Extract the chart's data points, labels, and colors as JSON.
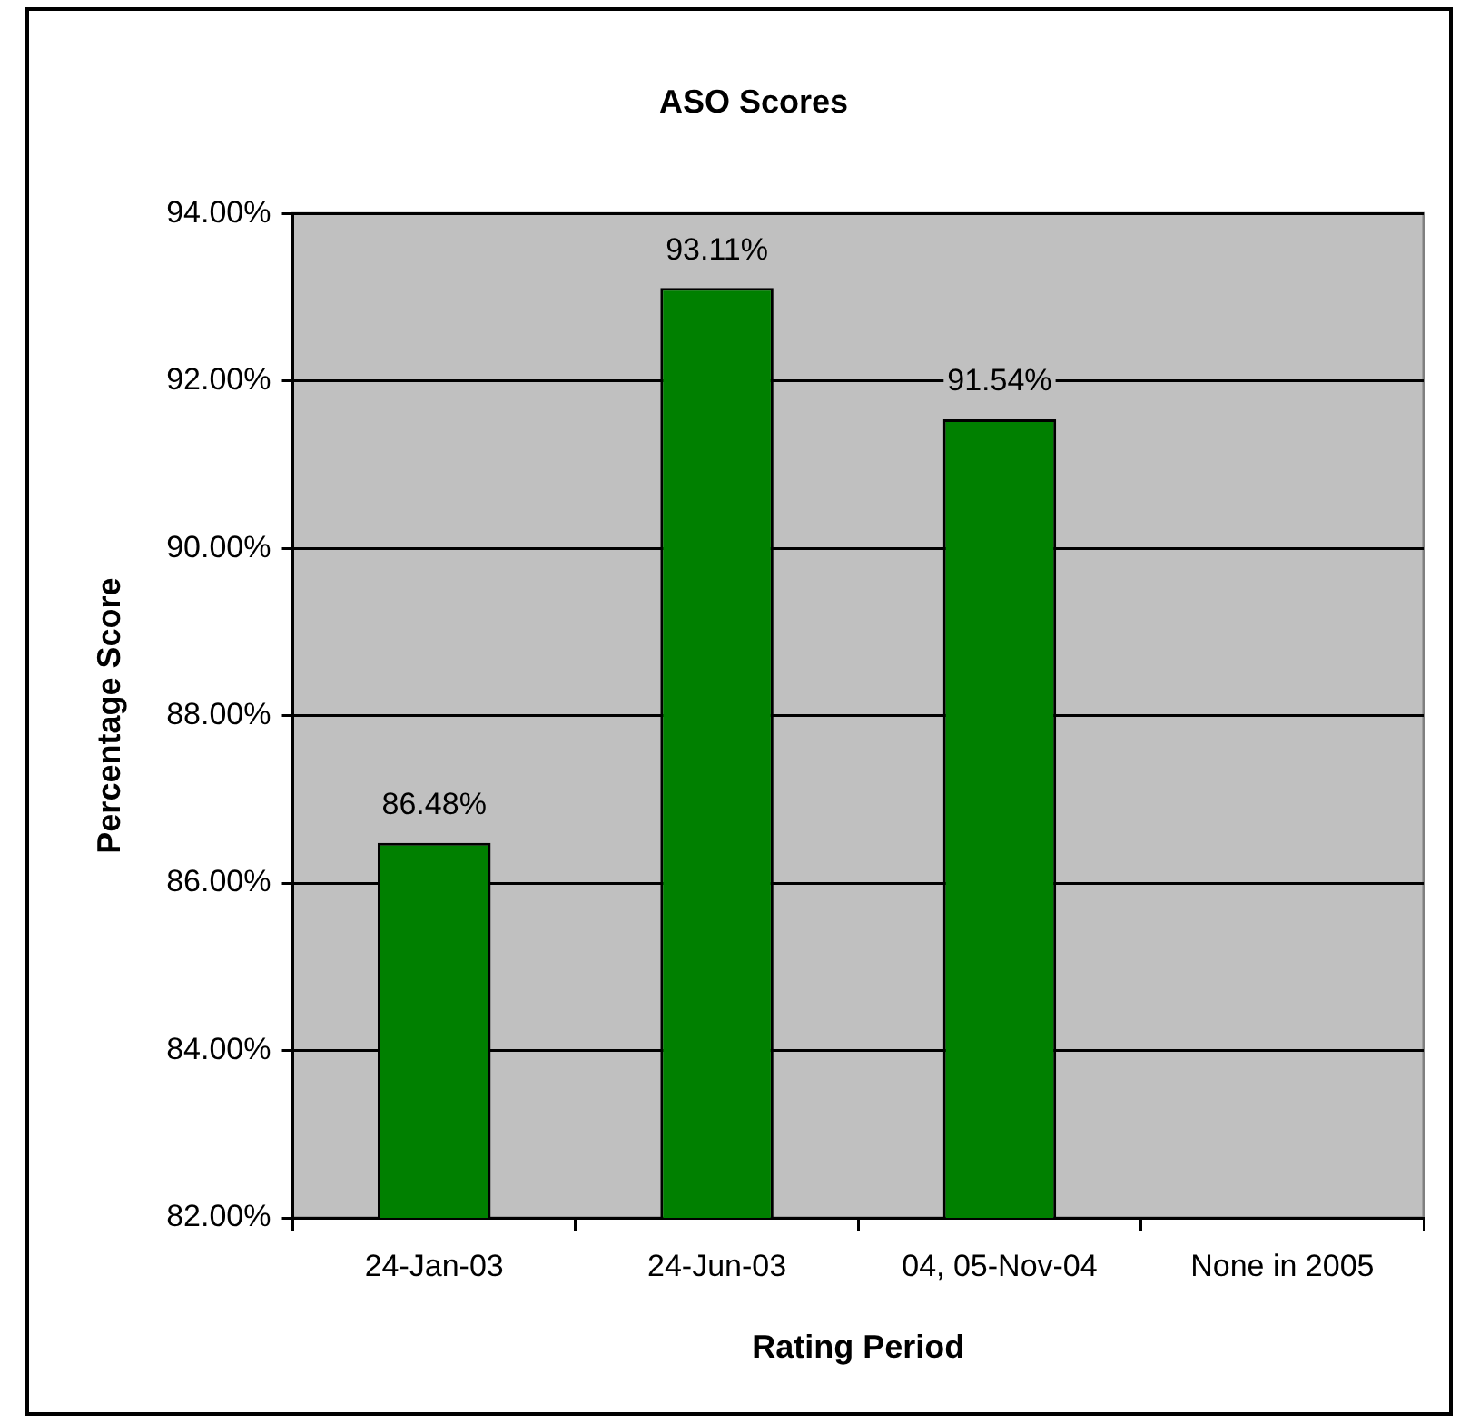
{
  "chart_data": {
    "type": "bar",
    "title": "ASO Scores",
    "xlabel": "Rating Period",
    "ylabel": "Percentage Score",
    "categories": [
      "24-Jan-03",
      "24-Jun-03",
      "04, 05-Nov-04",
      "None in 2005"
    ],
    "values": [
      86.48,
      93.11,
      91.54,
      null
    ],
    "color": "#008000",
    "value_labels": [
      "86.48%",
      "93.11%",
      "91.54%",
      null
    ],
    "ylim": [
      82,
      94
    ],
    "yticks": [
      {
        "value": 82,
        "label": "82.00%"
      },
      {
        "value": 84,
        "label": "84.00%"
      },
      {
        "value": 86,
        "label": "86.00%"
      },
      {
        "value": 88,
        "label": "88.00%"
      },
      {
        "value": 90,
        "label": "90.00%"
      },
      {
        "value": 92,
        "label": "92.00%"
      },
      {
        "value": 94,
        "label": "94.00%"
      }
    ],
    "grid": "y",
    "legend": false
  }
}
